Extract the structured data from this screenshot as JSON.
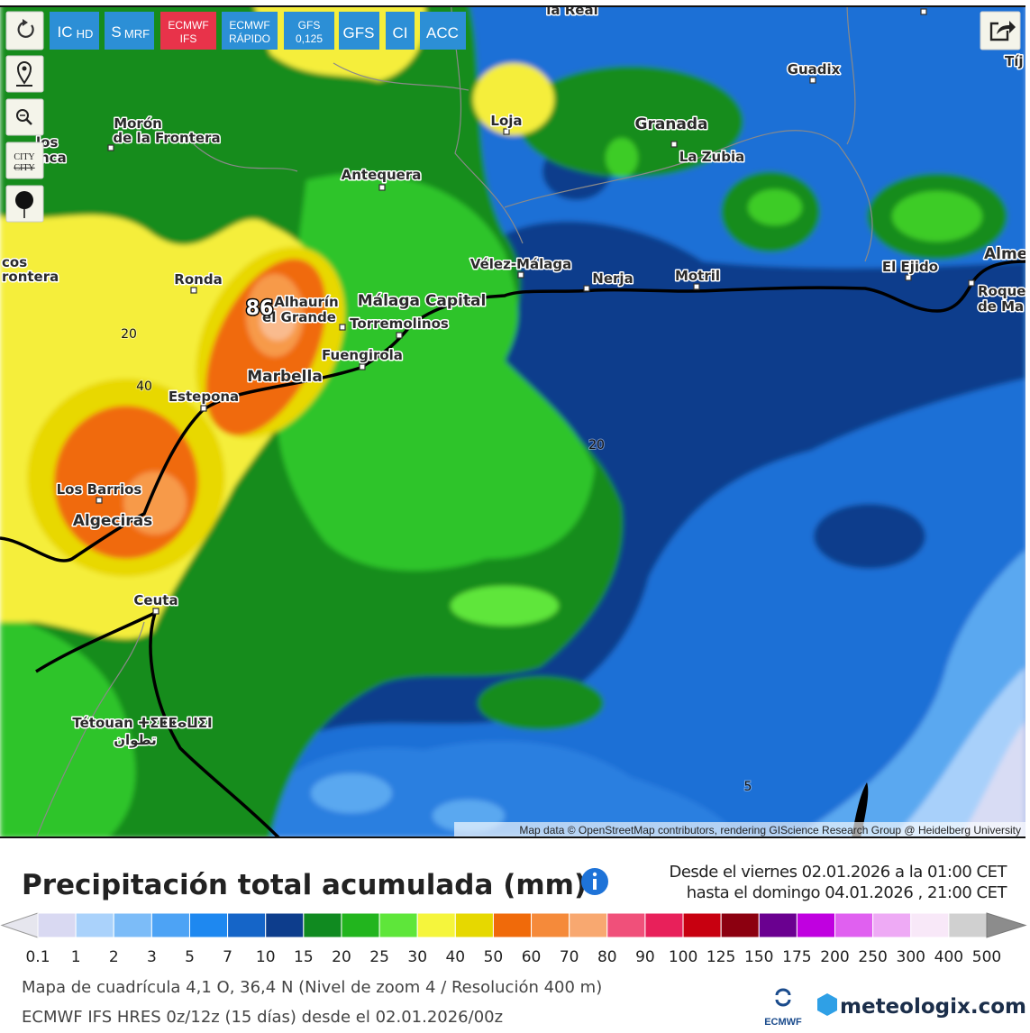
{
  "toolbar": {
    "buttons": [
      [
        "IC",
        "HD"
      ],
      [
        "S",
        "MRF"
      ],
      [
        "ECMWF",
        "IFS"
      ],
      [
        "ECMWF",
        "RÁPIDO"
      ],
      [
        "GFS",
        "0,125"
      ],
      [
        "GFS"
      ],
      [
        "CI"
      ],
      [
        "ACC"
      ]
    ],
    "city": [
      "CITY",
      "CITY"
    ]
  },
  "map": {
    "places": [
      [
        "la Real"
      ],
      [
        "Guadix"
      ],
      [
        "Granada"
      ],
      [
        "La Zubia"
      ],
      [
        "Loja"
      ],
      [
        "Morón",
        "de la Frontera"
      ],
      [
        "Antequera"
      ],
      [
        "Ronda"
      ],
      [
        "Vélez-Málaga"
      ],
      [
        "Nerja"
      ],
      [
        "Motril"
      ],
      [
        "El Ejido"
      ],
      [
        "Alme"
      ],
      [
        "Roque",
        "de Ma"
      ],
      [
        "Málaga Capital"
      ],
      [
        "Alhaurín",
        "el Grande"
      ],
      [
        "Torremolinos"
      ],
      [
        "Fuengirola"
      ],
      [
        "Marbella"
      ],
      [
        "Estepona"
      ],
      [
        "Los Barrios"
      ],
      [
        "Algeciras"
      ],
      [
        "Ceuta"
      ],
      [
        "Tétouan ⵜⵉⵟⵟⴰⵡⵉⵏ",
        "تطوان"
      ],
      [
        "Tíj"
      ],
      [
        "cos",
        "rontera"
      ],
      [
        "los",
        "nca"
      ]
    ],
    "contours": [
      20,
      40,
      20,
      5
    ],
    "max": 86,
    "attribution": "Map data © OpenStreetMap contributors, rendering GIScience Research Group @ Heidelberg University"
  },
  "legend": {
    "title": "Precipitación total acumulada (mm)",
    "from": "Desde el viernes 02.01.2026 a  la 01:00 CET",
    "to": "hasta el domingo 04.01.2026 , 21:00 CET",
    "labels": [
      0.1,
      1,
      2,
      3,
      5,
      7,
      10,
      15,
      20,
      25,
      30,
      40,
      50,
      60,
      70,
      80,
      90,
      100,
      125,
      150,
      175,
      200,
      250,
      300,
      400,
      500
    ],
    "colors": [
      "#d9d9f2",
      "#aad2fb",
      "#7cbcf8",
      "#4da3f5",
      "#1e88f0",
      "#1565c8",
      "#0d3d8c",
      "#108a20",
      "#22b51e",
      "#5ee63a",
      "#f5f53c",
      "#e6d800",
      "#f06a0a",
      "#f58a3a",
      "#f8a870",
      "#f0507a",
      "#e8205a",
      "#c80010",
      "#8c0010",
      "#6a0090",
      "#c000e0",
      "#e060f0",
      "#eeaaf5",
      "#f8e8f8",
      "#d0d0d0"
    ],
    "grid": "Mapa de cuadrícula 4,1 O, 36,4 N (Nivel de zoom 4 / Resolución 400 m)",
    "model": "ECMWF IFS HRES 0z/12z (15 días) desde el 02.01.2026/00z",
    "logo_ecmwf": "ECMWF",
    "logo_site": "meteologix.com"
  }
}
